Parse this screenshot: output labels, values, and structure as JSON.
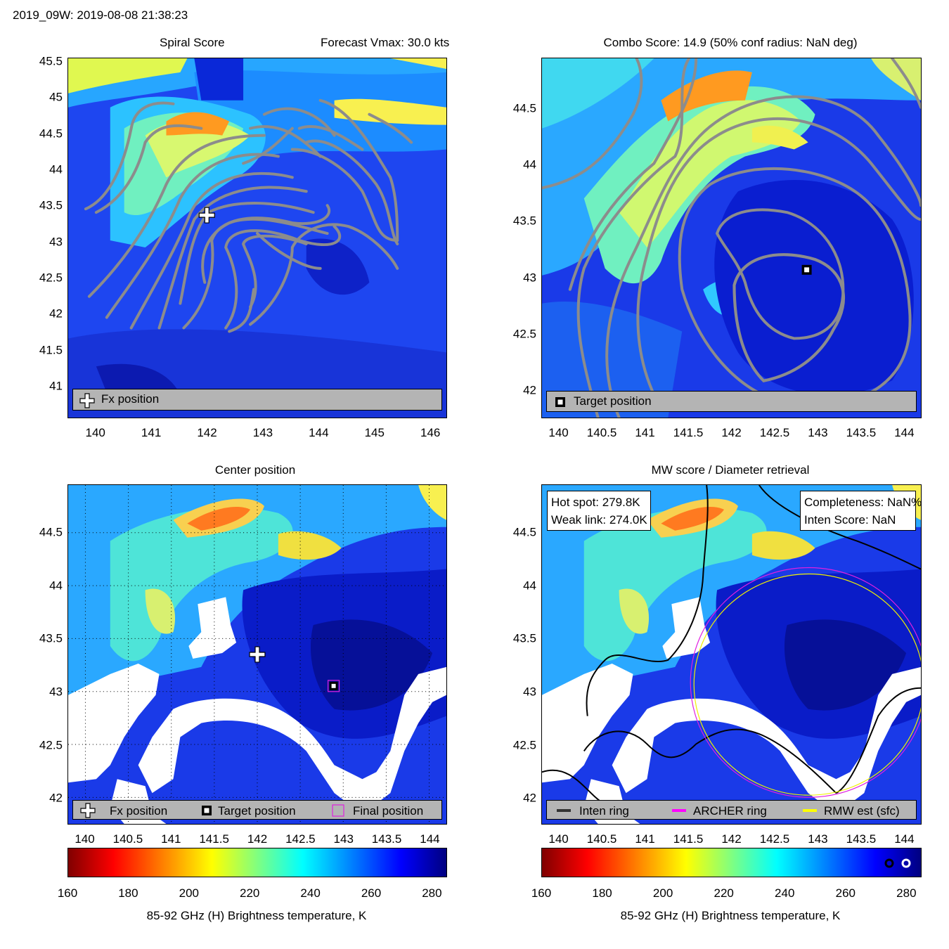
{
  "header": {
    "title": "2019_09W: 2019-08-08 21:38:23"
  },
  "chart_data": [
    {
      "type": "heatmap",
      "title": "Spiral Score",
      "subtitle": "Forecast Vmax: 30.0 kts",
      "xlim": [
        139.5,
        146.3
      ],
      "ylim": [
        40.55,
        45.55
      ],
      "xticks": [
        "140",
        "141",
        "142",
        "143",
        "144",
        "145",
        "146"
      ],
      "yticks": [
        "41",
        "41.5",
        "42",
        "42.5",
        "43",
        "43.5",
        "44",
        "44.5",
        "45",
        "45.5"
      ],
      "markers": [
        {
          "name": "Fx position",
          "x": 142.0,
          "y": 43.35
        }
      ],
      "legend": [
        "Fx position"
      ],
      "legend_position": "bottom"
    },
    {
      "type": "heatmap",
      "title": "Combo Score: 14.9  (50% conf radius: NaN deg)",
      "xlim": [
        139.8,
        144.2
      ],
      "ylim": [
        41.75,
        44.95
      ],
      "xticks": [
        "140",
        "140.5",
        "141",
        "141.5",
        "142",
        "142.5",
        "143",
        "143.5",
        "144"
      ],
      "yticks": [
        "42",
        "42.5",
        "43",
        "43.5",
        "44",
        "44.5"
      ],
      "markers": [
        {
          "name": "Target position",
          "x": 142.88,
          "y": 43.05
        }
      ],
      "legend": [
        "Target position"
      ],
      "legend_position": "bottom"
    },
    {
      "type": "heatmap",
      "title": "Center position",
      "xlim": [
        139.8,
        144.2
      ],
      "ylim": [
        41.75,
        44.95
      ],
      "xticks": [
        "140",
        "140.5",
        "141",
        "141.5",
        "142",
        "142.5",
        "143",
        "143.5",
        "144"
      ],
      "yticks": [
        "42",
        "42.5",
        "43",
        "43.5",
        "44",
        "44.5"
      ],
      "grid": true,
      "markers": [
        {
          "name": "Fx position",
          "x": 142.0,
          "y": 43.33
        },
        {
          "name": "Target position",
          "x": 142.88,
          "y": 43.03
        },
        {
          "name": "Final position",
          "x": 142.88,
          "y": 43.03
        }
      ],
      "legend": [
        "Fx position",
        "Target position",
        "Final position"
      ],
      "legend_position": "bottom",
      "colorbar": {
        "label": "85-92 GHz (H) Brightness temperature, K",
        "range": [
          160,
          285
        ],
        "ticks": [
          "160",
          "180",
          "200",
          "220",
          "240",
          "260",
          "280"
        ]
      }
    },
    {
      "type": "heatmap",
      "title": "MW score / Diameter retrieval",
      "xlim": [
        139.8,
        144.2
      ],
      "ylim": [
        41.75,
        44.95
      ],
      "xticks": [
        "140",
        "140.5",
        "141",
        "141.5",
        "142",
        "142.5",
        "143",
        "143.5",
        "144"
      ],
      "yticks": [
        "42",
        "42.5",
        "43",
        "43.5",
        "44",
        "44.5"
      ],
      "annotations": {
        "hot_spot": "Hot spot: 279.8K",
        "weak_link": "Weak link: 274.0K",
        "completeness": "Completeness: NaN%",
        "inten_score": "Inten Score: NaN"
      },
      "legend": [
        "Inten ring",
        "ARCHER ring",
        "RMW est (sfc)"
      ],
      "legend_position": "bottom",
      "colorbar": {
        "label": "85-92 GHz (H) Brightness temperature, K",
        "range": [
          160,
          285
        ],
        "ticks": [
          "160",
          "180",
          "200",
          "220",
          "240",
          "260",
          "280"
        ]
      }
    }
  ]
}
